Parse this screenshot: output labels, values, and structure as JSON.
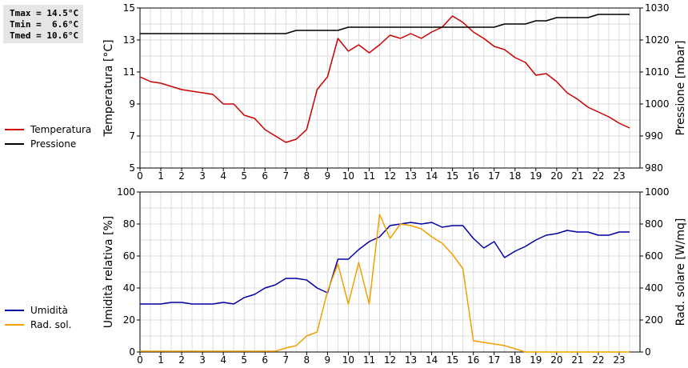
{
  "stats": {
    "tmax": "Tmax = 14.5°C",
    "tmin": "Tmin =  6.6°C",
    "tmed": "Tmed = 10.6°C"
  },
  "chart_data": [
    {
      "type": "line",
      "xlabel": "",
      "x_range": [
        0,
        24
      ],
      "x_ticks": [
        "0",
        "1",
        "2",
        "3",
        "4",
        "5",
        "6",
        "7",
        "8",
        "9",
        "10",
        "11",
        "12",
        "13",
        "14",
        "15",
        "16",
        "17",
        "18",
        "19",
        "20",
        "21",
        "22",
        "23"
      ],
      "ylabel": "Temperatura [°C]",
      "ylim": [
        5,
        15
      ],
      "y_ticks": [
        "5",
        "7",
        "9",
        "11",
        "13",
        "15"
      ],
      "y2label": "Pressione [mbar]",
      "y2lim": [
        980,
        1030
      ],
      "y2_ticks": [
        "980",
        "990",
        "1000",
        "1010",
        "1020",
        "1030"
      ],
      "grid": true,
      "legend_placement": "left",
      "series": [
        {
          "name": "Temperatura",
          "axis": "left",
          "color": "#cc0000",
          "x": [
            0,
            0.5,
            1,
            1.5,
            2,
            2.5,
            3,
            3.5,
            4,
            4.5,
            5,
            5.5,
            6,
            6.5,
            7,
            7.5,
            8,
            8.5,
            9,
            9.5,
            10,
            10.5,
            11,
            11.5,
            12,
            12.5,
            13,
            13.5,
            14,
            14.5,
            15,
            15.5,
            16,
            16.5,
            17,
            17.5,
            18,
            18.5,
            19,
            19.5,
            20,
            20.5,
            21,
            21.5,
            22,
            22.5,
            23,
            23.5
          ],
          "values": [
            10.7,
            10.4,
            10.3,
            10.1,
            9.9,
            9.8,
            9.7,
            9.6,
            9.0,
            9.0,
            8.3,
            8.1,
            7.4,
            7.0,
            6.6,
            6.8,
            7.4,
            9.9,
            10.7,
            13.1,
            12.3,
            12.7,
            12.2,
            12.7,
            13.3,
            13.1,
            13.4,
            13.1,
            13.5,
            13.8,
            14.5,
            14.1,
            13.5,
            13.1,
            12.6,
            12.4,
            11.9,
            11.6,
            10.8,
            10.9,
            10.4,
            9.7,
            9.3,
            8.8,
            8.5,
            8.2,
            7.8,
            7.5
          ]
        },
        {
          "name": "Pressione",
          "axis": "right",
          "color": "#000000",
          "x": [
            0,
            7,
            7.5,
            9.5,
            10,
            15,
            15.5,
            17,
            17.5,
            18.5,
            19,
            19.5,
            20,
            21.5,
            22,
            23.5
          ],
          "values": [
            1022,
            1022,
            1023,
            1023,
            1024,
            1024,
            1024,
            1024,
            1025,
            1025,
            1026,
            1026,
            1027,
            1027,
            1028,
            1028
          ]
        }
      ]
    },
    {
      "type": "line",
      "xlabel": "",
      "x_range": [
        0,
        24
      ],
      "x_ticks": [
        "0",
        "1",
        "2",
        "3",
        "4",
        "5",
        "6",
        "7",
        "8",
        "9",
        "10",
        "11",
        "12",
        "13",
        "14",
        "15",
        "16",
        "17",
        "18",
        "19",
        "20",
        "21",
        "22",
        "23"
      ],
      "ylabel": "Umidità relativa [%]",
      "ylim": [
        0,
        100
      ],
      "y_ticks": [
        "0",
        "20",
        "40",
        "60",
        "80",
        "100"
      ],
      "y2label": "Rad. solare [W/mq]",
      "y2lim": [
        0,
        1000
      ],
      "y2_ticks": [
        "0",
        "200",
        "400",
        "600",
        "800",
        "1000"
      ],
      "grid": true,
      "legend_placement": "left",
      "series": [
        {
          "name": "Umidità",
          "axis": "left",
          "color": "#0000aa",
          "x": [
            0,
            0.5,
            1,
            1.5,
            2,
            2.5,
            3,
            3.5,
            4,
            4.5,
            5,
            5.5,
            6,
            6.5,
            7,
            7.5,
            8,
            8.5,
            9,
            9.5,
            10,
            10.5,
            11,
            11.5,
            12,
            12.5,
            13,
            13.5,
            14,
            14.5,
            15,
            15.5,
            16,
            16.5,
            17,
            17.5,
            18,
            18.5,
            19,
            19.5,
            20,
            20.5,
            21,
            21.5,
            22,
            22.5,
            23,
            23.5
          ],
          "values": [
            30,
            30,
            30,
            31,
            31,
            30,
            30,
            30,
            31,
            30,
            34,
            36,
            40,
            42,
            46,
            46,
            45,
            40,
            37,
            58,
            58,
            64,
            69,
            72,
            79,
            80,
            81,
            80,
            81,
            78,
            79,
            79,
            71,
            65,
            69,
            59,
            63,
            66,
            70,
            73,
            74,
            76,
            75,
            75,
            73,
            73,
            75,
            75
          ]
        },
        {
          "name": "Rad. sol.",
          "axis": "right",
          "color": "#f0a000",
          "x": [
            0,
            0.5,
            1,
            1.5,
            2,
            2.5,
            3,
            3.5,
            4,
            4.5,
            5,
            5.5,
            6,
            6.5,
            7,
            7.5,
            8,
            8.5,
            9,
            9.5,
            10,
            10.5,
            11,
            11.5,
            12,
            12.5,
            13,
            13.5,
            14,
            14.5,
            15,
            15.5,
            16,
            16.5,
            17,
            17.5,
            18,
            18.5,
            19,
            19.5,
            20,
            20.5,
            21,
            21.5,
            22,
            22.5,
            23,
            23.5
          ],
          "values": [
            5,
            5,
            5,
            5,
            5,
            5,
            5,
            5,
            5,
            5,
            5,
            5,
            5,
            5,
            25,
            40,
            100,
            125,
            380,
            550,
            300,
            560,
            300,
            860,
            710,
            800,
            790,
            770,
            720,
            680,
            610,
            520,
            70,
            60,
            50,
            40,
            20,
            0,
            0,
            0,
            0,
            0,
            0,
            0,
            0,
            0,
            0,
            0
          ]
        }
      ]
    }
  ]
}
